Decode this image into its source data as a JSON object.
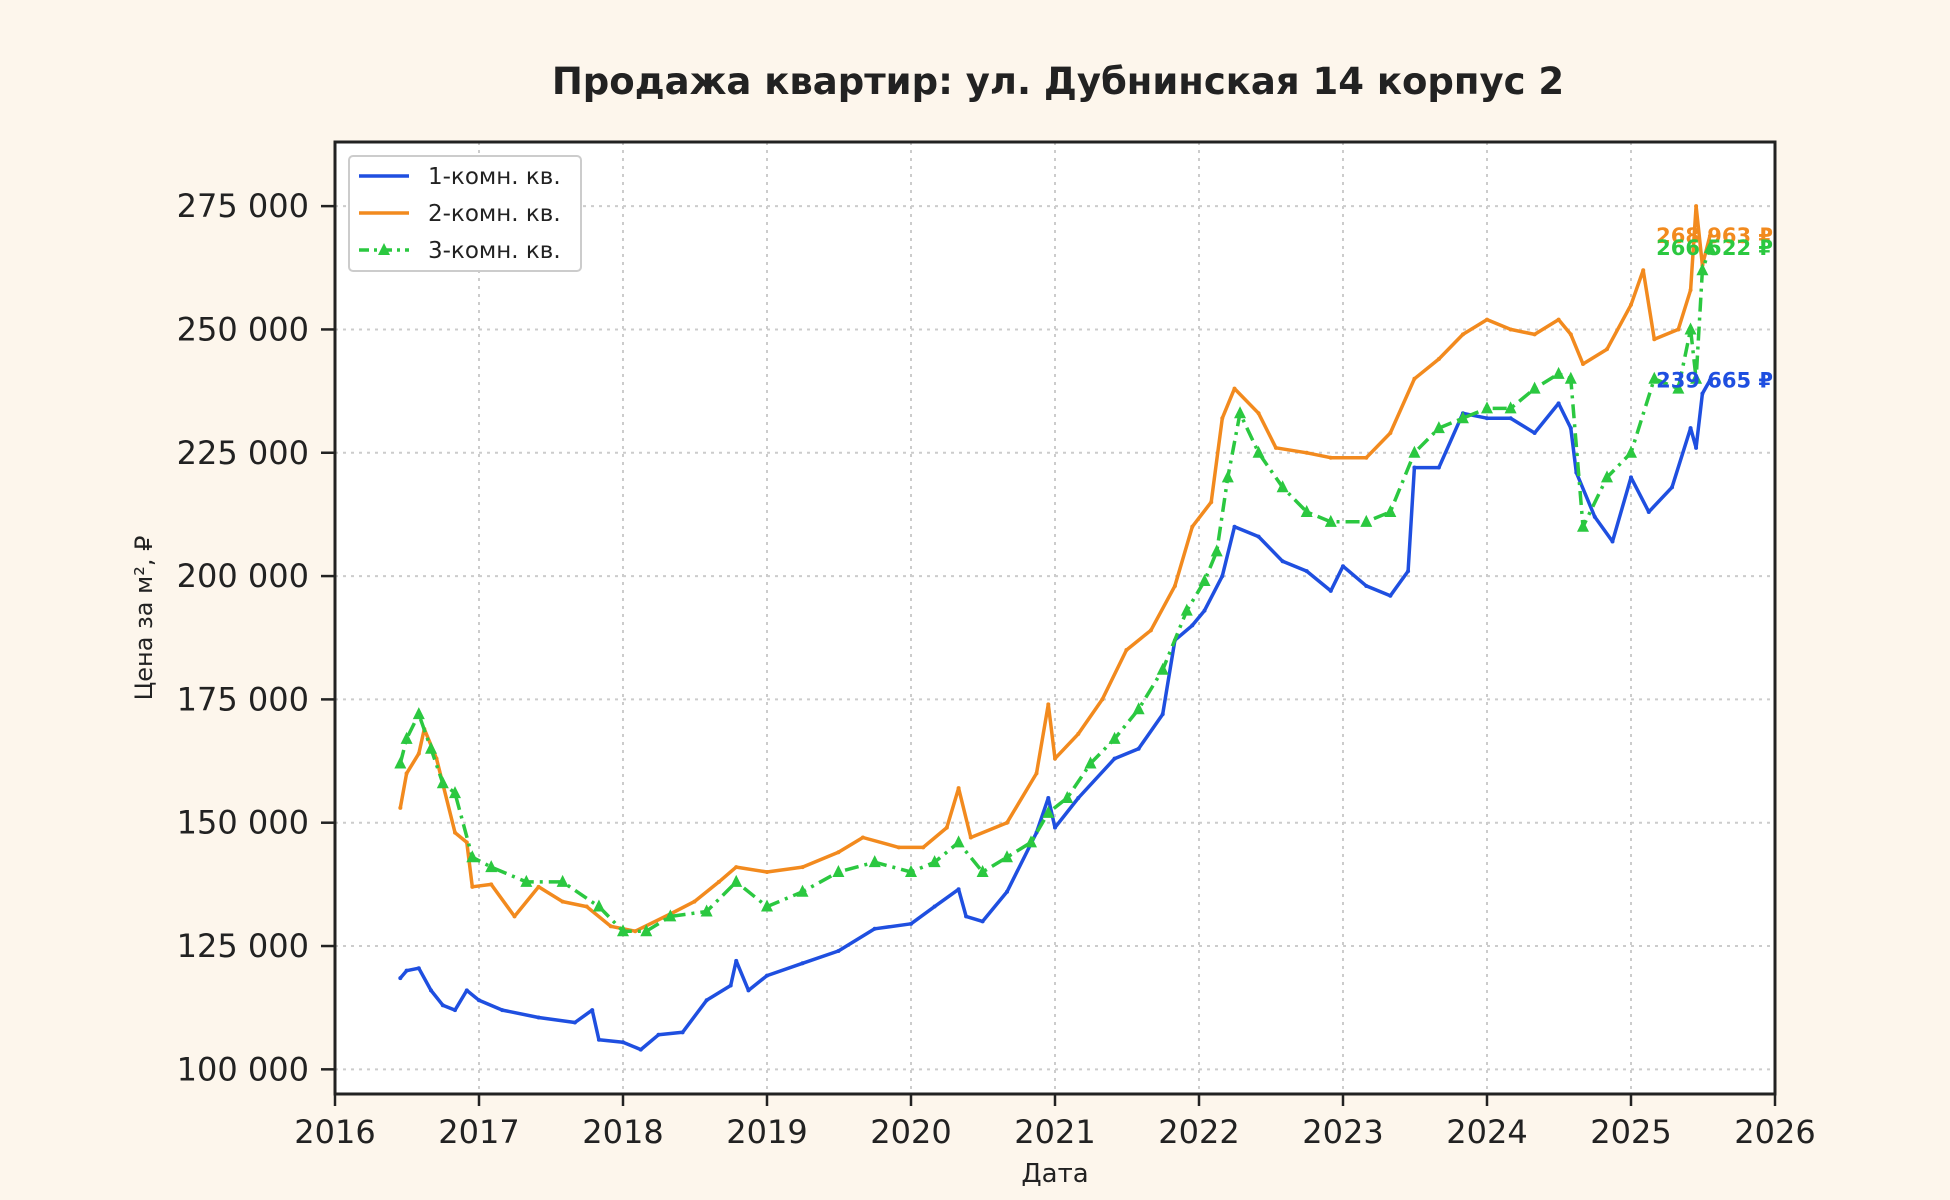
{
  "chart_data": {
    "type": "line",
    "title": "Продажа квартир: ул. Дубнинская 14 корпус 2",
    "xlabel": "Дата",
    "ylabel": "Цена за м², ₽",
    "x_ticks": [
      "2016",
      "2017",
      "2018",
      "2019",
      "2020",
      "2021",
      "2022",
      "2023",
      "2024",
      "2025",
      "2026"
    ],
    "y_ticks": [
      100000,
      125000,
      150000,
      175000,
      200000,
      225000,
      250000,
      275000
    ],
    "y_tick_labels": [
      "100 000",
      "125 000",
      "150 000",
      "175 000",
      "200 000",
      "225 000",
      "250 000",
      "275 000"
    ],
    "xlim": [
      "2016-01-01",
      "2026-01-01"
    ],
    "ylim": [
      95000,
      288000
    ],
    "grid": true,
    "legend_position": "top-left",
    "colors": {
      "background": "#fdf6ec",
      "axis": "#222222",
      "grid": "#cccccc"
    },
    "series": [
      {
        "name": "1-комн. кв.",
        "color": "#1f4fe0",
        "style": "solid",
        "final_label": "239 665 ₽",
        "points": [
          [
            "2016-06-15",
            118500
          ],
          [
            "2016-07-01",
            120000
          ],
          [
            "2016-08-01",
            120500
          ],
          [
            "2016-09-01",
            116000
          ],
          [
            "2016-10-01",
            113000
          ],
          [
            "2016-11-01",
            112000
          ],
          [
            "2016-12-01",
            116000
          ],
          [
            "2017-01-01",
            114000
          ],
          [
            "2017-03-01",
            112000
          ],
          [
            "2017-06-01",
            110500
          ],
          [
            "2017-09-01",
            109500
          ],
          [
            "2017-10-15",
            112000
          ],
          [
            "2017-11-01",
            106000
          ],
          [
            "2018-01-01",
            105500
          ],
          [
            "2018-02-15",
            104000
          ],
          [
            "2018-04-01",
            107000
          ],
          [
            "2018-06-01",
            107500
          ],
          [
            "2018-08-01",
            114000
          ],
          [
            "2018-10-01",
            117000
          ],
          [
            "2018-10-15",
            122000
          ],
          [
            "2018-11-15",
            116000
          ],
          [
            "2019-01-01",
            119000
          ],
          [
            "2019-04-01",
            121500
          ],
          [
            "2019-07-01",
            124000
          ],
          [
            "2019-10-01",
            128500
          ],
          [
            "2020-01-01",
            129500
          ],
          [
            "2020-03-01",
            133000
          ],
          [
            "2020-05-01",
            136500
          ],
          [
            "2020-05-20",
            131000
          ],
          [
            "2020-07-01",
            130000
          ],
          [
            "2020-09-01",
            136000
          ],
          [
            "2020-11-15",
            148000
          ],
          [
            "2020-12-15",
            155000
          ],
          [
            "2021-01-01",
            149000
          ],
          [
            "2021-03-01",
            155000
          ],
          [
            "2021-06-01",
            163000
          ],
          [
            "2021-08-01",
            165000
          ],
          [
            "2021-10-01",
            172000
          ],
          [
            "2021-11-01",
            187000
          ],
          [
            "2021-12-15",
            190000
          ],
          [
            "2022-01-15",
            193000
          ],
          [
            "2022-03-01",
            200000
          ],
          [
            "2022-04-01",
            210000
          ],
          [
            "2022-06-01",
            208000
          ],
          [
            "2022-08-01",
            203000
          ],
          [
            "2022-10-01",
            201000
          ],
          [
            "2022-12-01",
            197000
          ],
          [
            "2023-01-01",
            202000
          ],
          [
            "2023-03-01",
            198000
          ],
          [
            "2023-05-01",
            196000
          ],
          [
            "2023-06-15",
            201000
          ],
          [
            "2023-07-01",
            222000
          ],
          [
            "2023-09-01",
            222000
          ],
          [
            "2023-11-01",
            233000
          ],
          [
            "2024-01-01",
            232000
          ],
          [
            "2024-03-01",
            232000
          ],
          [
            "2024-05-01",
            229000
          ],
          [
            "2024-07-01",
            235000
          ],
          [
            "2024-08-01",
            230000
          ],
          [
            "2024-08-15",
            221000
          ],
          [
            "2024-10-01",
            212000
          ],
          [
            "2024-11-15",
            207000
          ],
          [
            "2025-01-01",
            220000
          ],
          [
            "2025-02-15",
            213000
          ],
          [
            "2025-04-15",
            218000
          ],
          [
            "2025-06-01",
            230000
          ],
          [
            "2025-06-15",
            226000
          ],
          [
            "2025-07-01",
            237000
          ],
          [
            "2025-07-20",
            239665
          ]
        ]
      },
      {
        "name": "2-комн. кв.",
        "color": "#f28a1e",
        "style": "solid",
        "final_label": "268 963 ₽",
        "points": [
          [
            "2016-06-15",
            153000
          ],
          [
            "2016-07-01",
            160000
          ],
          [
            "2016-08-01",
            164000
          ],
          [
            "2016-08-15",
            169000
          ],
          [
            "2016-09-15",
            163000
          ],
          [
            "2016-11-01",
            148000
          ],
          [
            "2016-12-01",
            146000
          ],
          [
            "2016-12-15",
            137000
          ],
          [
            "2017-02-01",
            137500
          ],
          [
            "2017-04-01",
            131000
          ],
          [
            "2017-06-01",
            137000
          ],
          [
            "2017-08-01",
            134000
          ],
          [
            "2017-10-01",
            133000
          ],
          [
            "2017-12-01",
            129000
          ],
          [
            "2018-02-01",
            128000
          ],
          [
            "2018-05-01",
            131500
          ],
          [
            "2018-07-01",
            134000
          ],
          [
            "2018-09-01",
            138000
          ],
          [
            "2018-10-15",
            141000
          ],
          [
            "2019-01-01",
            140000
          ],
          [
            "2019-04-01",
            141000
          ],
          [
            "2019-07-01",
            144000
          ],
          [
            "2019-09-01",
            147000
          ],
          [
            "2019-12-01",
            145000
          ],
          [
            "2020-02-01",
            145000
          ],
          [
            "2020-04-01",
            149000
          ],
          [
            "2020-05-01",
            157000
          ],
          [
            "2020-06-01",
            147000
          ],
          [
            "2020-09-01",
            150000
          ],
          [
            "2020-11-15",
            160000
          ],
          [
            "2020-12-15",
            174000
          ],
          [
            "2021-01-01",
            163000
          ],
          [
            "2021-03-01",
            168000
          ],
          [
            "2021-05-01",
            175000
          ],
          [
            "2021-07-01",
            185000
          ],
          [
            "2021-09-01",
            189000
          ],
          [
            "2021-11-01",
            198000
          ],
          [
            "2021-12-15",
            210000
          ],
          [
            "2022-02-01",
            215000
          ],
          [
            "2022-03-01",
            232000
          ],
          [
            "2022-04-01",
            238000
          ],
          [
            "2022-06-01",
            233000
          ],
          [
            "2022-07-15",
            226000
          ],
          [
            "2022-10-01",
            225000
          ],
          [
            "2022-12-01",
            224000
          ],
          [
            "2023-03-01",
            224000
          ],
          [
            "2023-05-01",
            229000
          ],
          [
            "2023-07-01",
            240000
          ],
          [
            "2023-09-01",
            244000
          ],
          [
            "2023-11-01",
            249000
          ],
          [
            "2024-01-01",
            252000
          ],
          [
            "2024-03-01",
            250000
          ],
          [
            "2024-05-01",
            249000
          ],
          [
            "2024-07-01",
            252000
          ],
          [
            "2024-08-01",
            249000
          ],
          [
            "2024-09-01",
            243000
          ],
          [
            "2024-11-01",
            246000
          ],
          [
            "2025-01-01",
            255000
          ],
          [
            "2025-02-01",
            262000
          ],
          [
            "2025-03-01",
            248000
          ],
          [
            "2025-05-01",
            250000
          ],
          [
            "2025-06-01",
            258000
          ],
          [
            "2025-06-15",
            275000
          ],
          [
            "2025-07-01",
            263000
          ],
          [
            "2025-07-20",
            268963
          ]
        ]
      },
      {
        "name": "3-комн. кв.",
        "color": "#2bc840",
        "style": "dashdot-triangle",
        "final_label": "266 522 ₽",
        "points": [
          [
            "2016-06-15",
            162000
          ],
          [
            "2016-07-01",
            167000
          ],
          [
            "2016-08-01",
            172000
          ],
          [
            "2016-09-01",
            165000
          ],
          [
            "2016-10-01",
            158000
          ],
          [
            "2016-11-01",
            156000
          ],
          [
            "2016-12-15",
            143000
          ],
          [
            "2017-02-01",
            141000
          ],
          [
            "2017-05-01",
            138000
          ],
          [
            "2017-08-01",
            138000
          ],
          [
            "2017-11-01",
            133000
          ],
          [
            "2018-01-01",
            128000
          ],
          [
            "2018-03-01",
            128000
          ],
          [
            "2018-05-01",
            131000
          ],
          [
            "2018-08-01",
            132000
          ],
          [
            "2018-10-15",
            138000
          ],
          [
            "2019-01-01",
            133000
          ],
          [
            "2019-04-01",
            136000
          ],
          [
            "2019-07-01",
            140000
          ],
          [
            "2019-10-01",
            142000
          ],
          [
            "2020-01-01",
            140000
          ],
          [
            "2020-03-01",
            142000
          ],
          [
            "2020-05-01",
            146000
          ],
          [
            "2020-07-01",
            140000
          ],
          [
            "2020-09-01",
            143000
          ],
          [
            "2020-11-01",
            146000
          ],
          [
            "2020-12-15",
            152000
          ],
          [
            "2021-02-01",
            155000
          ],
          [
            "2021-04-01",
            162000
          ],
          [
            "2021-06-01",
            167000
          ],
          [
            "2021-08-01",
            173000
          ],
          [
            "2021-10-01",
            181000
          ],
          [
            "2021-12-01",
            193000
          ],
          [
            "2022-01-15",
            199000
          ],
          [
            "2022-02-15",
            205000
          ],
          [
            "2022-03-15",
            220000
          ],
          [
            "2022-04-15",
            233000
          ],
          [
            "2022-06-01",
            225000
          ],
          [
            "2022-08-01",
            218000
          ],
          [
            "2022-10-01",
            213000
          ],
          [
            "2022-12-01",
            211000
          ],
          [
            "2023-03-01",
            211000
          ],
          [
            "2023-05-01",
            213000
          ],
          [
            "2023-07-01",
            225000
          ],
          [
            "2023-09-01",
            230000
          ],
          [
            "2023-11-01",
            232000
          ],
          [
            "2024-01-01",
            234000
          ],
          [
            "2024-03-01",
            234000
          ],
          [
            "2024-05-01",
            238000
          ],
          [
            "2024-07-01",
            241000
          ],
          [
            "2024-08-01",
            240000
          ],
          [
            "2024-09-01",
            210000
          ],
          [
            "2024-11-01",
            220000
          ],
          [
            "2025-01-01",
            225000
          ],
          [
            "2025-03-01",
            240000
          ],
          [
            "2025-05-01",
            238000
          ],
          [
            "2025-06-01",
            250000
          ],
          [
            "2025-06-15",
            240000
          ],
          [
            "2025-07-01",
            262000
          ],
          [
            "2025-07-20",
            266522
          ]
        ]
      }
    ]
  }
}
